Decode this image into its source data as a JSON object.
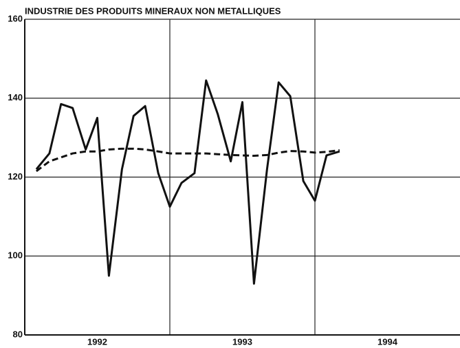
{
  "chart_data": {
    "type": "line",
    "title": "INDUSTRIE DES PRODUITS MINERAUX NON METALLIQUES",
    "x": [
      1992.08,
      1992.17,
      1992.25,
      1992.33,
      1992.42,
      1992.5,
      1992.58,
      1992.67,
      1992.75,
      1992.83,
      1992.92,
      1993.0,
      1993.08,
      1993.17,
      1993.25,
      1993.33,
      1993.42,
      1993.5,
      1993.58,
      1993.67,
      1993.75,
      1993.83,
      1993.92,
      1994.0,
      1994.08,
      1994.17
    ],
    "series": [
      {
        "color": "#111111",
        "dash": false,
        "values": [
          122,
          126,
          138.5,
          137.5,
          127,
          135,
          95,
          122,
          135.5,
          138,
          121,
          112.5,
          118.5,
          121,
          144.5,
          136,
          124,
          139,
          93,
          122,
          144,
          140.5,
          119,
          114,
          125.5,
          126.5
        ]
      },
      {
        "color": "#111111",
        "dash": true,
        "values": [
          121.5,
          124,
          125,
          126,
          126.5,
          126.5,
          127,
          127.2,
          127.2,
          127,
          126.5,
          126,
          126,
          126,
          126,
          125.8,
          125.6,
          125.5,
          125.4,
          125.6,
          126.2,
          126.6,
          126.5,
          126.2,
          126.4,
          126.8
        ]
      }
    ],
    "xlim": [
      1992,
      1995
    ],
    "xticks": [
      {
        "value": 1992.5,
        "label": "1992"
      },
      {
        "value": 1993.5,
        "label": "1993"
      },
      {
        "value": 1994.5,
        "label": "1994"
      }
    ],
    "xgrid": [
      1993,
      1994
    ],
    "ylim": [
      80,
      160
    ],
    "yticks": [
      80,
      100,
      120,
      140,
      160
    ],
    "grid": true
  }
}
